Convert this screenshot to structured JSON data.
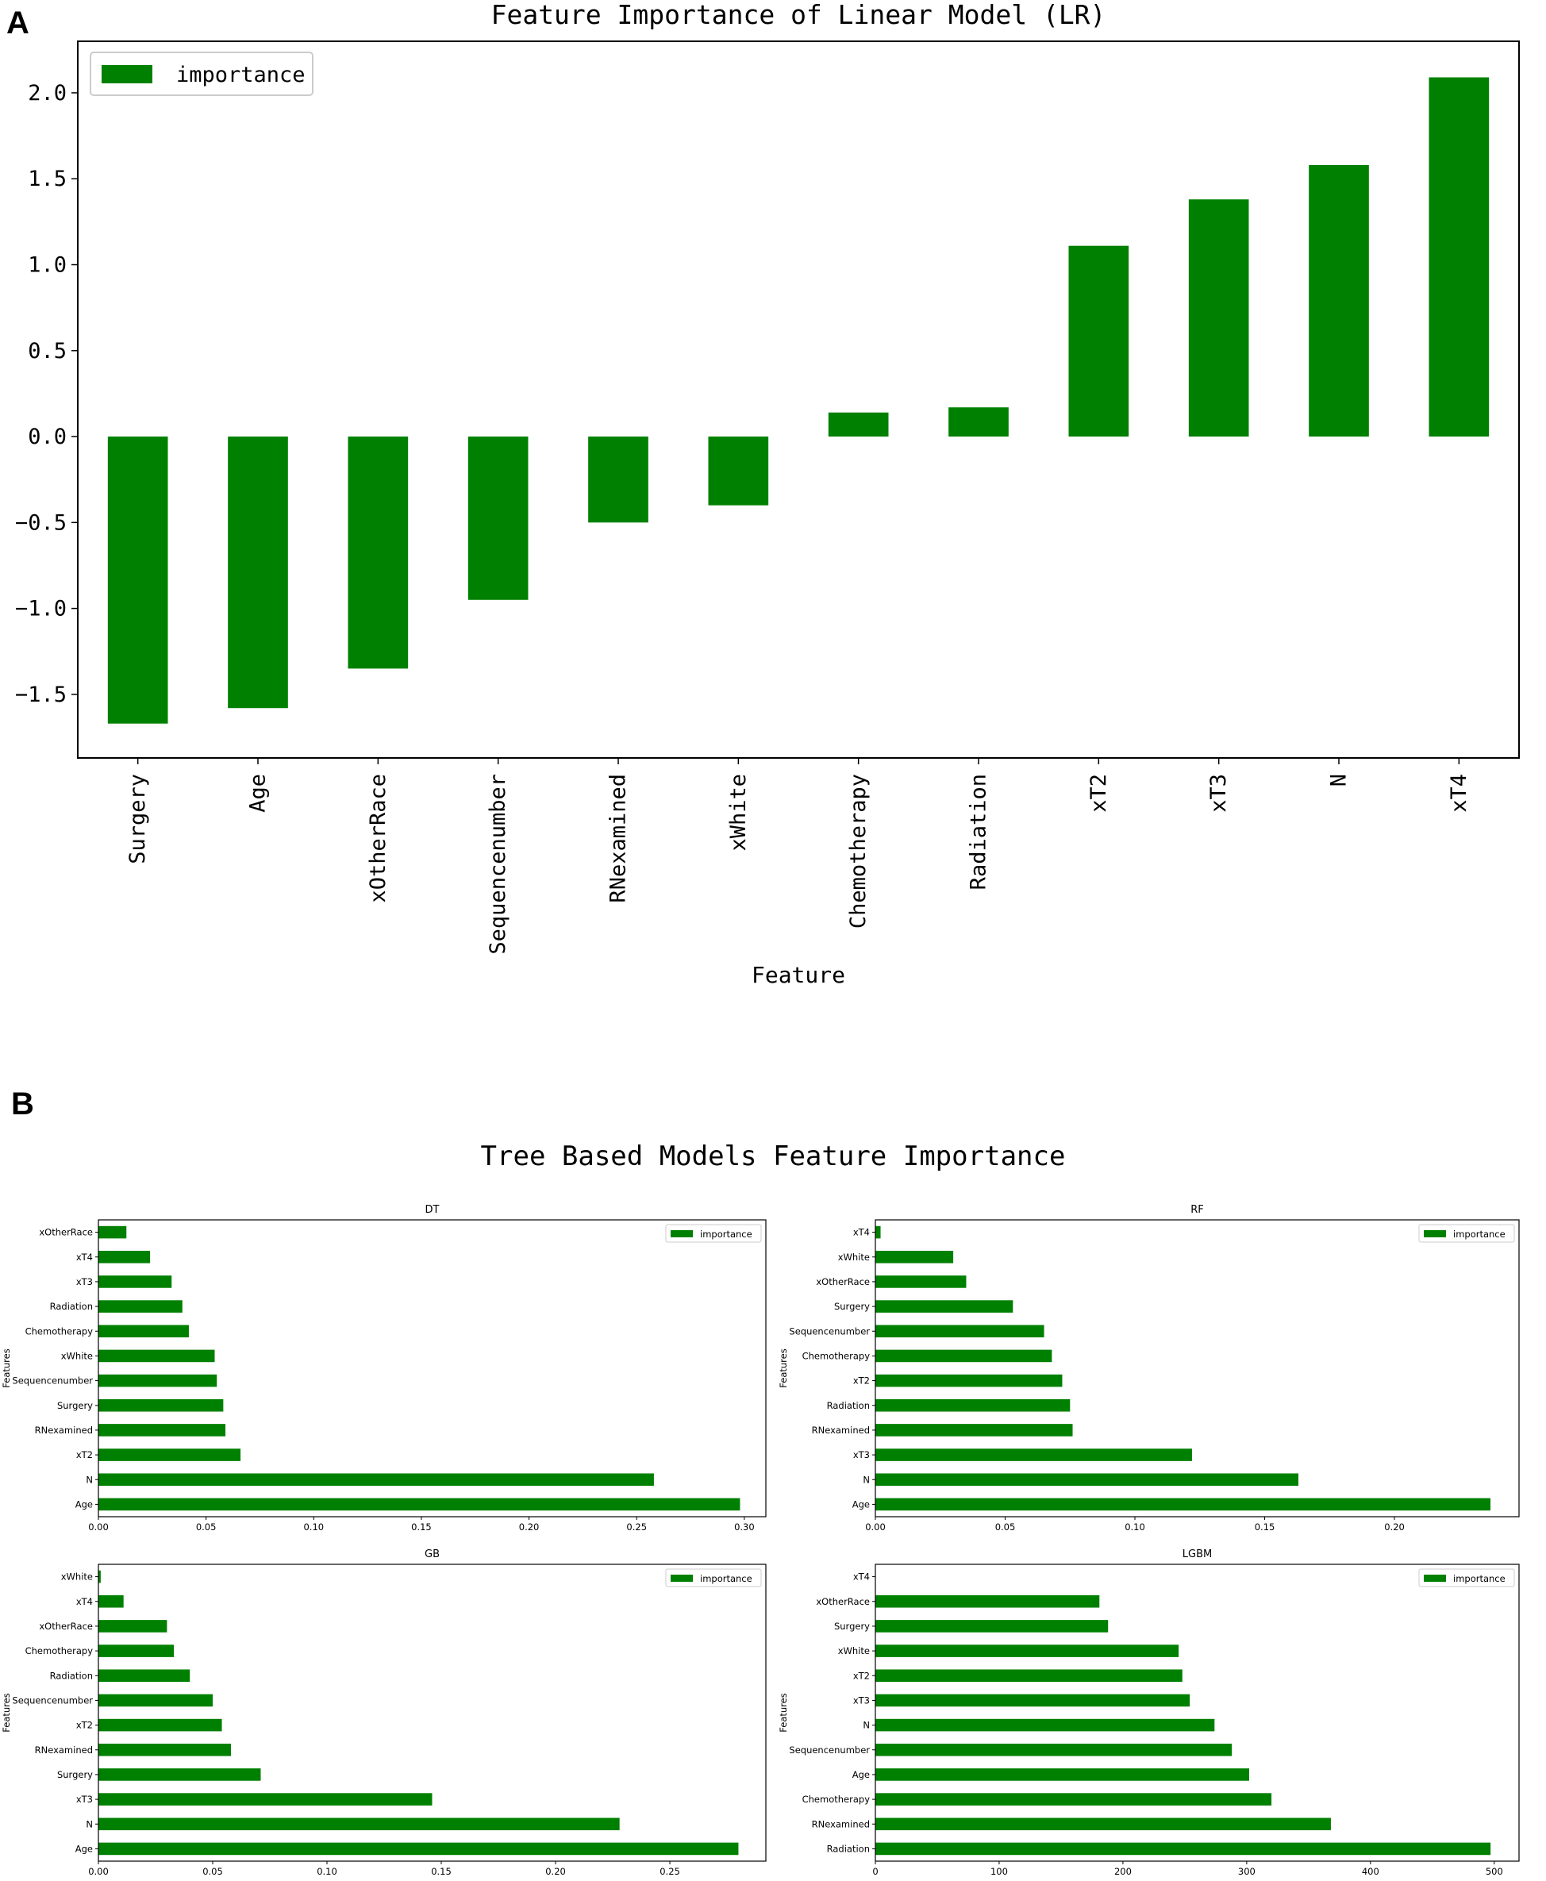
{
  "panel_a_label": "A",
  "panel_b_label": "B",
  "suptitle_b": "Tree Based Models Feature Importance",
  "bar_color": "#008000",
  "chart_data": [
    {
      "type": "bar",
      "title": "Feature Importance of Linear Model (LR)",
      "xlabel": "Feature",
      "ylabel": "",
      "legend": "importance",
      "legend_position": "top-left",
      "ylim": [
        -1.87,
        2.3
      ],
      "yticks": [
        -1.5,
        -1.0,
        -0.5,
        0.0,
        0.5,
        1.0,
        1.5,
        2.0
      ],
      "ytick_labels": [
        "−1.5",
        "−1.0",
        "−0.5",
        "0.0",
        "0.5",
        "1.0",
        "1.5",
        "2.0"
      ],
      "categories": [
        "Surgery",
        "Age",
        "xOtherRace",
        "Sequencenumber",
        "RNexamined",
        "xWhite",
        "Chemotherapy",
        "Radiation",
        "xT2",
        "xT3",
        "N",
        "xT4"
      ],
      "values": [
        -1.67,
        -1.58,
        -1.35,
        -0.95,
        -0.5,
        -0.4,
        0.14,
        0.17,
        1.11,
        1.38,
        1.58,
        2.09
      ]
    },
    {
      "type": "bar",
      "orientation": "horizontal",
      "title": "DT",
      "ylabel": "Features",
      "legend": "importance",
      "legend_position": "top-right",
      "xlim": [
        0,
        0.31
      ],
      "xticks": [
        0.0,
        0.05,
        0.1,
        0.15,
        0.2,
        0.25,
        0.3
      ],
      "xtick_labels": [
        "0.00",
        "0.05",
        "0.10",
        "0.15",
        "0.20",
        "0.25",
        "0.30"
      ],
      "categories": [
        "Age",
        "N",
        "xT2",
        "RNexamined",
        "Surgery",
        "Sequencenumber",
        "xWhite",
        "Chemotherapy",
        "Radiation",
        "xT3",
        "xT4",
        "xOtherRace"
      ],
      "values": [
        0.298,
        0.258,
        0.066,
        0.059,
        0.058,
        0.055,
        0.054,
        0.042,
        0.039,
        0.034,
        0.024,
        0.013
      ]
    },
    {
      "type": "bar",
      "orientation": "horizontal",
      "title": "RF",
      "ylabel": "Features",
      "legend": "importance",
      "legend_position": "top-right",
      "xlim": [
        0,
        0.248
      ],
      "xticks": [
        0.0,
        0.05,
        0.1,
        0.15,
        0.2
      ],
      "xtick_labels": [
        "0.00",
        "0.05",
        "0.10",
        "0.15",
        "0.20"
      ],
      "categories": [
        "Age",
        "N",
        "xT3",
        "RNexamined",
        "Radiation",
        "xT2",
        "Chemotherapy",
        "Sequencenumber",
        "Surgery",
        "xOtherRace",
        "xWhite",
        "xT4"
      ],
      "values": [
        0.237,
        0.163,
        0.122,
        0.076,
        0.075,
        0.072,
        0.068,
        0.065,
        0.053,
        0.035,
        0.03,
        0.002
      ]
    },
    {
      "type": "bar",
      "orientation": "horizontal",
      "title": "GB",
      "ylabel": "Features",
      "legend": "importance",
      "legend_position": "top-right",
      "xlim": [
        0,
        0.292
      ],
      "xticks": [
        0.0,
        0.05,
        0.1,
        0.15,
        0.2,
        0.25
      ],
      "xtick_labels": [
        "0.00",
        "0.05",
        "0.10",
        "0.15",
        "0.20",
        "0.25"
      ],
      "categories": [
        "Age",
        "N",
        "xT3",
        "Surgery",
        "RNexamined",
        "xT2",
        "Sequencenumber",
        "Radiation",
        "Chemotherapy",
        "xOtherRace",
        "xT4",
        "xWhite"
      ],
      "values": [
        0.28,
        0.228,
        0.146,
        0.071,
        0.058,
        0.054,
        0.05,
        0.04,
        0.033,
        0.03,
        0.011,
        0.001
      ]
    },
    {
      "type": "bar",
      "orientation": "horizontal",
      "title": "LGBM",
      "ylabel": "Features",
      "legend": "importance",
      "legend_position": "top-right",
      "xlim": [
        0,
        520
      ],
      "xticks": [
        0,
        100,
        200,
        300,
        400,
        500
      ],
      "xtick_labels": [
        "0",
        "100",
        "200",
        "300",
        "400",
        "500"
      ],
      "categories": [
        "Radiation",
        "RNexamined",
        "Chemotherapy",
        "Age",
        "Sequencenumber",
        "N",
        "xT3",
        "xT2",
        "xWhite",
        "Surgery",
        "xOtherRace",
        "xT4"
      ],
      "values": [
        497,
        368,
        320,
        302,
        288,
        274,
        254,
        248,
        245,
        188,
        181,
        0
      ]
    }
  ]
}
